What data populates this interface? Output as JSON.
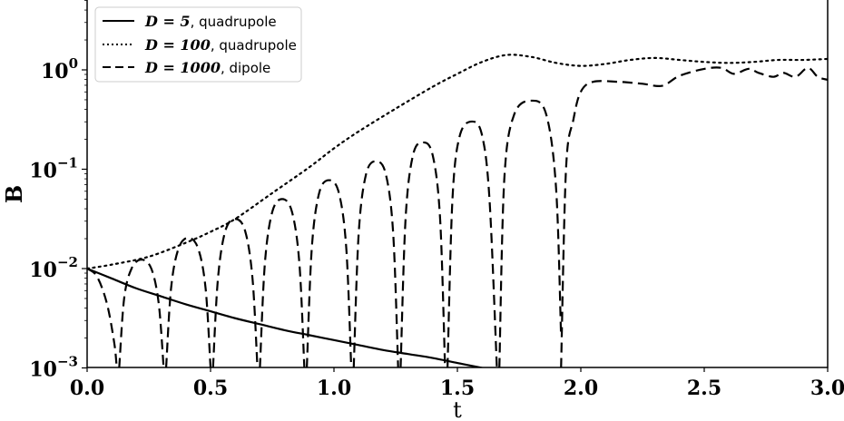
{
  "chart_data": {
    "type": "line",
    "title": "",
    "xlabel": "t",
    "ylabel": "B",
    "xscale": "linear",
    "yscale": "log",
    "xlim": [
      0.0,
      3.0
    ],
    "ylim": [
      0.001,
      5.0
    ],
    "grid": false,
    "legend_position": "upper left",
    "x_ticks": [
      {
        "value": 0.0,
        "label": "0.0"
      },
      {
        "value": 0.5,
        "label": "0.5"
      },
      {
        "value": 1.0,
        "label": "1.0"
      },
      {
        "value": 1.5,
        "label": "1.5"
      },
      {
        "value": 2.0,
        "label": "2.0"
      },
      {
        "value": 2.5,
        "label": "2.5"
      },
      {
        "value": 3.0,
        "label": "3.0"
      }
    ],
    "y_ticks": [
      {
        "value": 1,
        "base": "10",
        "exp": "0"
      },
      {
        "value": 0.1,
        "base": "10",
        "exp": "−1"
      },
      {
        "value": 0.01,
        "base": "10",
        "exp": "−2"
      },
      {
        "value": 0.001,
        "base": "10",
        "exp": "−3"
      }
    ],
    "series": [
      {
        "name": "D = 5, quadrupole",
        "legend_math": "D = 5",
        "legend_suffix": ", quadrupole",
        "style": "solid",
        "color": "#000000",
        "x": [
          0.0,
          0.1,
          0.2,
          0.3,
          0.4,
          0.5,
          0.6,
          0.7,
          0.8,
          0.9,
          1.0,
          1.1,
          1.2,
          1.3,
          1.4,
          1.5,
          1.6
        ],
        "log10_y": [
          -2.0,
          -2.1,
          -2.2,
          -2.28,
          -2.36,
          -2.43,
          -2.5,
          -2.56,
          -2.62,
          -2.67,
          -2.72,
          -2.77,
          -2.82,
          -2.86,
          -2.9,
          -2.95,
          -3.0
        ]
      },
      {
        "name": "D = 100, quadrupole",
        "legend_math": "D = 100",
        "legend_suffix": ", quadrupole",
        "style": "dotted",
        "color": "#000000",
        "x": [
          0.0,
          0.1,
          0.25,
          0.4,
          0.5,
          0.6,
          0.75,
          0.9,
          1.0,
          1.1,
          1.25,
          1.4,
          1.5,
          1.6,
          1.7,
          1.8,
          1.9,
          2.0,
          2.1,
          2.2,
          2.3,
          2.4,
          2.5,
          2.6,
          2.7,
          2.8,
          2.9,
          3.0
        ],
        "log10_y": [
          -2.0,
          -1.96,
          -1.88,
          -1.74,
          -1.63,
          -1.5,
          -1.24,
          -0.98,
          -0.79,
          -0.62,
          -0.39,
          -0.17,
          -0.04,
          0.08,
          0.15,
          0.13,
          0.07,
          0.04,
          0.06,
          0.1,
          0.12,
          0.1,
          0.08,
          0.07,
          0.08,
          0.1,
          0.1,
          0.11
        ]
      },
      {
        "name": "D = 1000, dipole",
        "legend_math": "D = 1000",
        "legend_suffix": ", dipole",
        "style": "dashed",
        "color": "#000000",
        "segments": [
          {
            "x": [
              0.0,
              0.04,
              0.08,
              0.11,
              0.12
            ],
            "log10_y": [
              -2.0,
              -2.08,
              -2.35,
              -2.75,
              -3.0
            ]
          },
          {
            "x": [
              0.13,
              0.15,
              0.18,
              0.22,
              0.26,
              0.29,
              0.31
            ],
            "log10_y": [
              -3.0,
              -2.3,
              -2.0,
              -1.91,
              -2.0,
              -2.35,
              -3.0
            ]
          },
          {
            "x": [
              0.32,
              0.34,
              0.37,
              0.41,
              0.45,
              0.48,
              0.5
            ],
            "log10_y": [
              -3.0,
              -2.2,
              -1.8,
              -1.69,
              -1.8,
              -2.2,
              -3.0
            ]
          },
          {
            "x": [
              0.51,
              0.53,
              0.56,
              0.6,
              0.64,
              0.67,
              0.69
            ],
            "log10_y": [
              -3.0,
              -2.1,
              -1.62,
              -1.5,
              -1.62,
              -2.1,
              -3.0
            ]
          },
          {
            "x": [
              0.7,
              0.72,
              0.75,
              0.79,
              0.83,
              0.86,
              0.88
            ],
            "log10_y": [
              -3.0,
              -1.95,
              -1.43,
              -1.3,
              -1.43,
              -1.95,
              -3.0
            ]
          },
          {
            "x": [
              0.89,
              0.91,
              0.94,
              0.98,
              1.02,
              1.05,
              1.07
            ],
            "log10_y": [
              -3.0,
              -1.8,
              -1.24,
              -1.11,
              -1.24,
              -1.8,
              -3.0
            ]
          },
          {
            "x": [
              1.08,
              1.1,
              1.13,
              1.17,
              1.21,
              1.24,
              1.26
            ],
            "log10_y": [
              -3.0,
              -1.65,
              -1.05,
              -0.92,
              -1.05,
              -1.65,
              -3.0
            ]
          },
          {
            "x": [
              1.27,
              1.29,
              1.32,
              1.36,
              1.4,
              1.43,
              1.45
            ],
            "log10_y": [
              -3.0,
              -1.5,
              -0.86,
              -0.73,
              -0.86,
              -1.5,
              -3.0
            ]
          },
          {
            "x": [
              1.46,
              1.48,
              1.51,
              1.56,
              1.6,
              1.63,
              1.66
            ],
            "log10_y": [
              -3.0,
              -1.3,
              -0.66,
              -0.52,
              -0.66,
              -1.3,
              -3.0
            ]
          },
          {
            "x": [
              1.67,
              1.69,
              1.73,
              1.8,
              1.86,
              1.9,
              1.92
            ],
            "log10_y": [
              -3.0,
              -1.1,
              -0.45,
              -0.31,
              -0.45,
              -1.2,
              -2.68
            ]
          },
          {
            "x": [
              1.92,
              1.94,
              1.97,
              2.0,
              2.05,
              2.15,
              2.25,
              2.33,
              2.4,
              2.5,
              2.57,
              2.62,
              2.68,
              2.72,
              2.78,
              2.82,
              2.87,
              2.92,
              2.96,
              3.0
            ],
            "log10_y": [
              -3.0,
              -1.0,
              -0.5,
              -0.22,
              -0.12,
              -0.12,
              -0.14,
              -0.16,
              -0.06,
              0.01,
              0.02,
              -0.04,
              0.01,
              -0.03,
              -0.07,
              -0.03,
              -0.07,
              0.02,
              -0.07,
              -0.1
            ]
          }
        ]
      }
    ]
  }
}
